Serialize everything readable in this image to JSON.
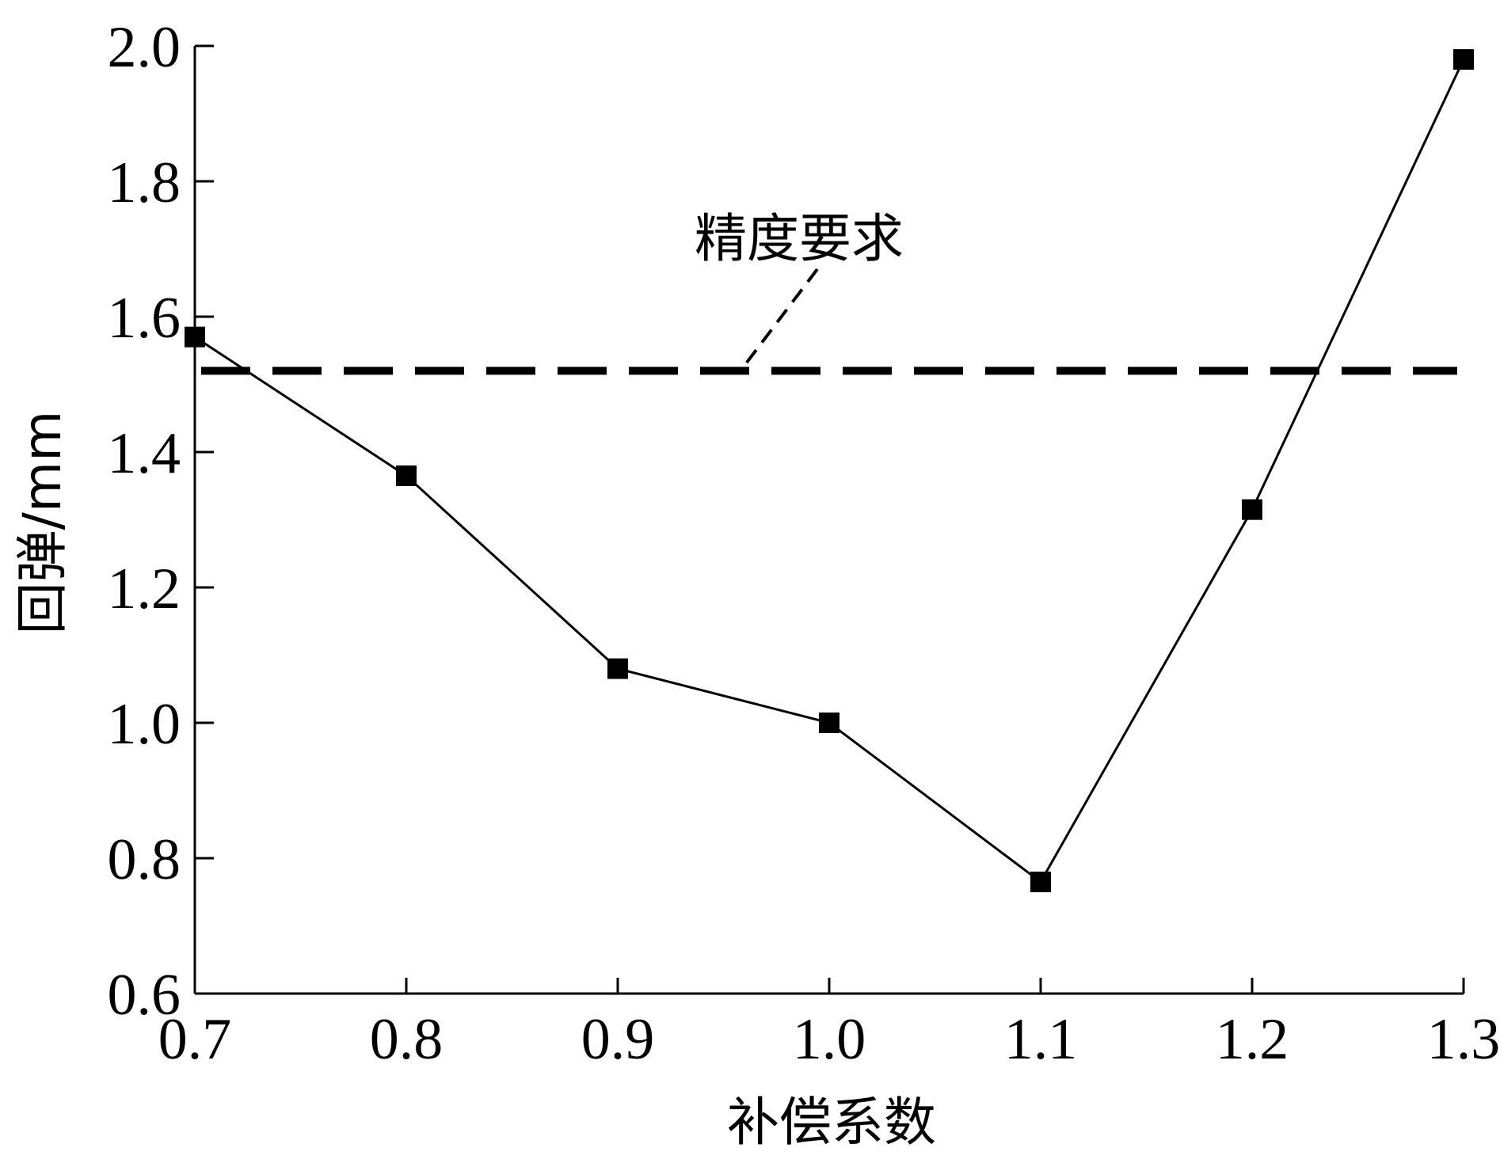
{
  "chart_data": {
    "type": "line",
    "title": "",
    "xlabel": "补偿系数",
    "ylabel": "回弹/mm",
    "xlim": [
      0.7,
      1.3
    ],
    "ylim": [
      0.6,
      2.0
    ],
    "xticks": [
      0.7,
      0.8,
      0.9,
      1.0,
      1.1,
      1.2,
      1.3
    ],
    "xtick_labels": [
      "0.7",
      "0.8",
      "0.9",
      "1.0",
      "1.1",
      "1.2",
      "1.3"
    ],
    "yticks": [
      0.6,
      0.8,
      1.0,
      1.2,
      1.4,
      1.6,
      1.8,
      2.0
    ],
    "ytick_labels": [
      "0.6",
      "0.8",
      "1.0",
      "1.2",
      "1.4",
      "1.6",
      "1.8",
      "2.0"
    ],
    "grid": false,
    "series": [
      {
        "x": [
          0.7,
          0.8,
          0.9,
          1.0,
          1.1,
          1.2,
          1.3
        ],
        "y": [
          1.57,
          1.365,
          1.08,
          1.0,
          0.765,
          1.315,
          1.98
        ],
        "marker": "square",
        "color": "#000000"
      }
    ],
    "reference_line": {
      "y": 1.52,
      "label": "精度要求",
      "style": "dashed",
      "color": "#000000"
    }
  }
}
